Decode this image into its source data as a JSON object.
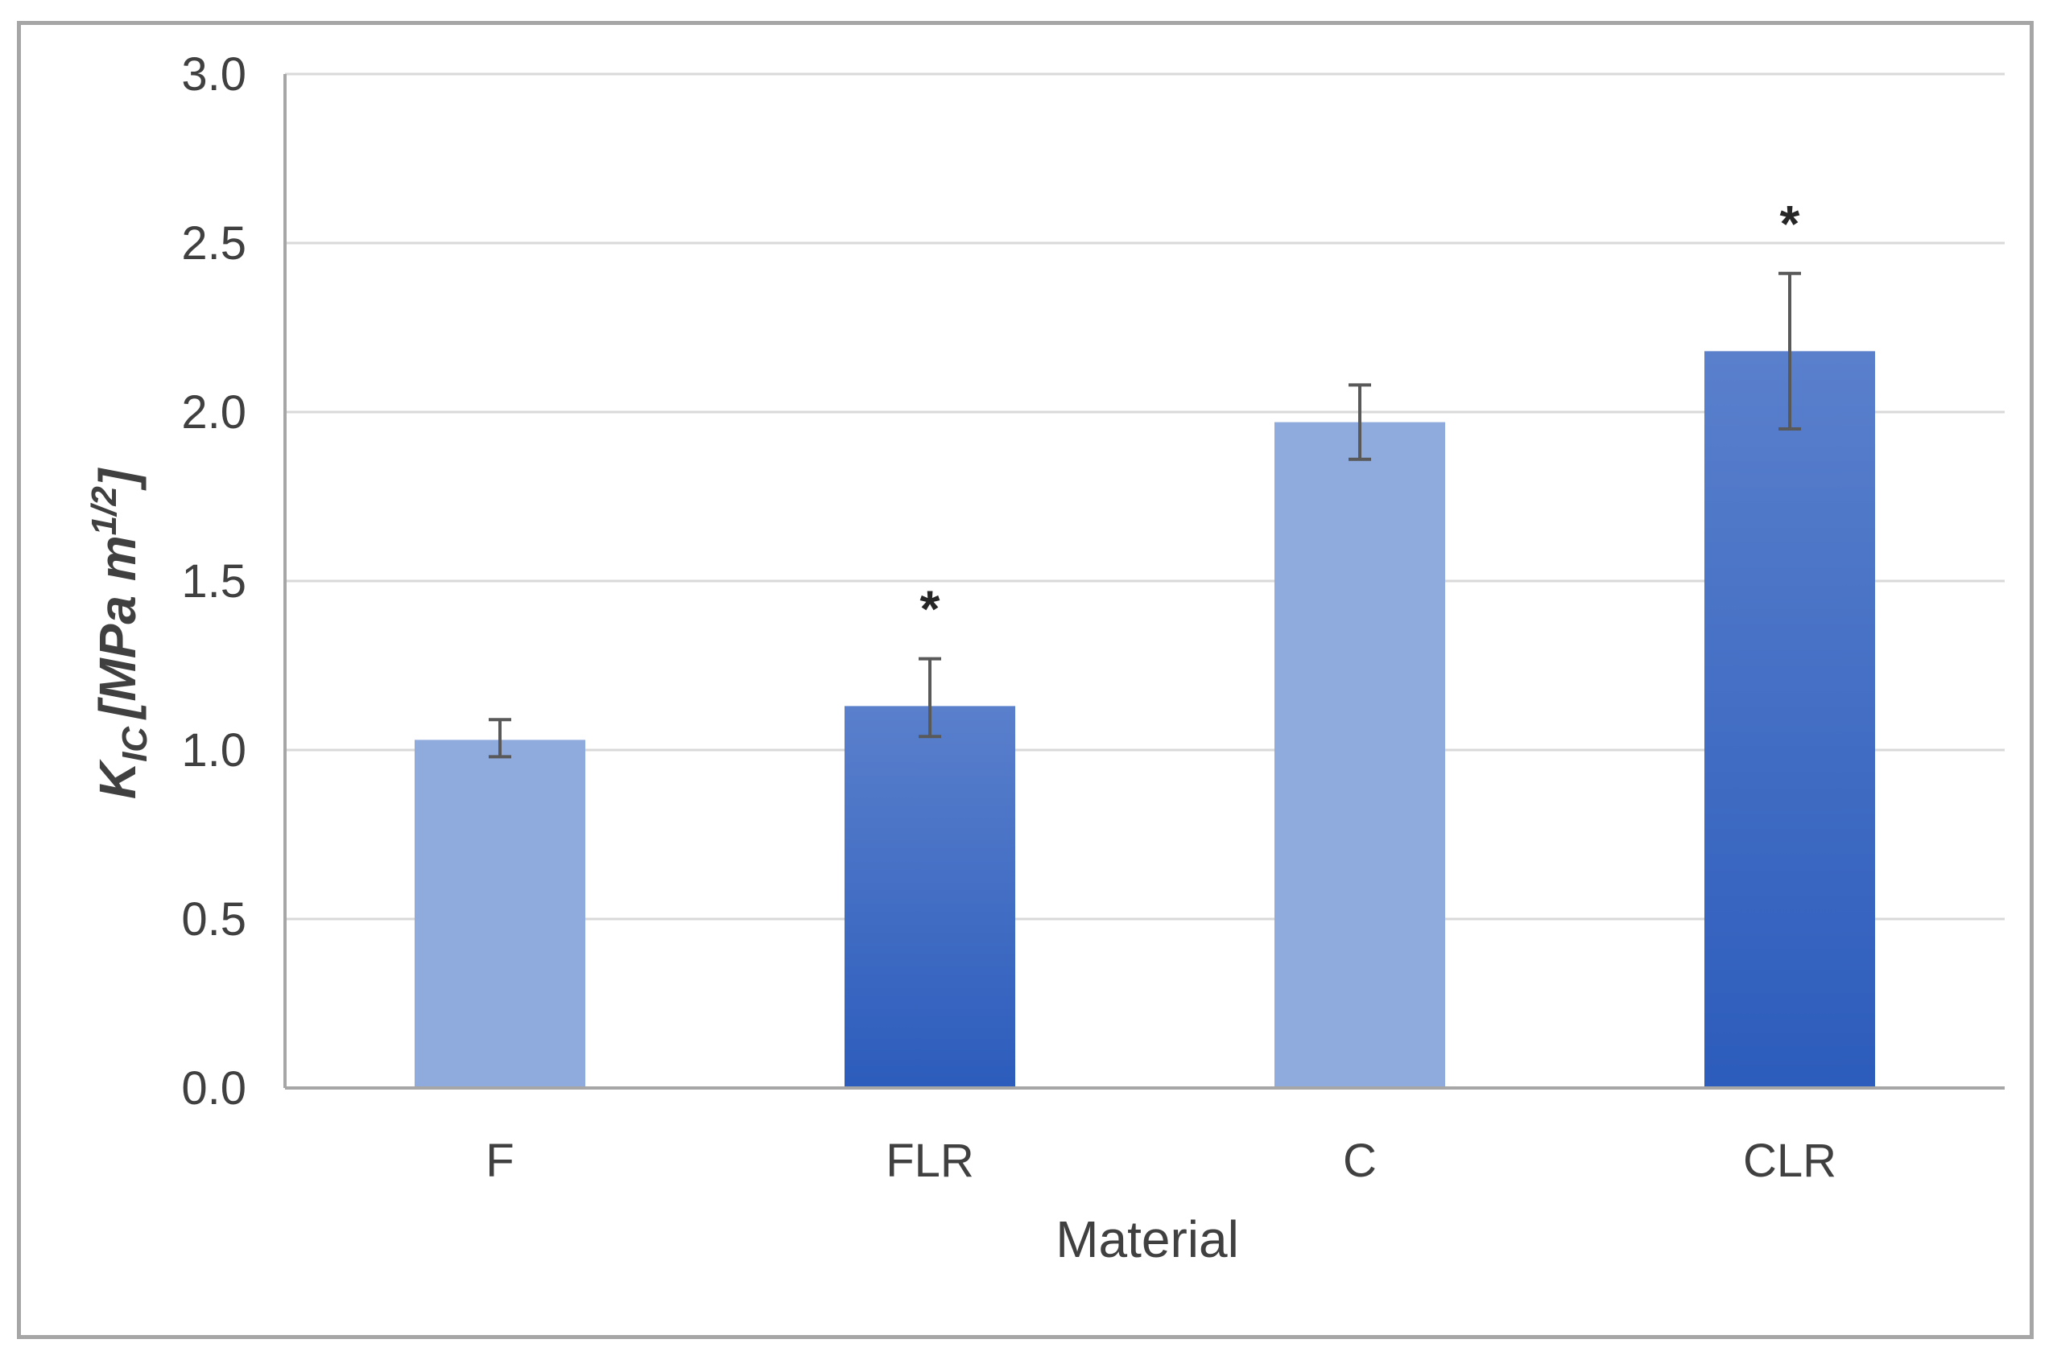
{
  "chart_data": {
    "type": "bar",
    "categories": [
      "F",
      "FLR",
      "C",
      "CLR"
    ],
    "values": [
      1.03,
      1.13,
      1.97,
      2.18
    ],
    "error_plus": [
      0.06,
      0.14,
      0.11,
      0.23
    ],
    "error_minus": [
      0.05,
      0.09,
      0.11,
      0.23
    ],
    "annotations": [
      "",
      "*",
      "",
      "*"
    ],
    "bar_styles": [
      "light",
      "gradient",
      "light",
      "gradient"
    ],
    "ylim": [
      0,
      3.0
    ],
    "ytick_step": 0.5,
    "yticks": [
      "0.0",
      "0.5",
      "1.0",
      "1.5",
      "2.0",
      "2.5",
      "3.0"
    ],
    "xlabel": "Material",
    "ylabel": {
      "symbol": "K",
      "subscript": "IC",
      "unit_prefix": "[MPa m",
      "unit_exponent": "1/2",
      "unit_suffix": "]"
    },
    "grid": true,
    "colors": {
      "light": "#8faadc",
      "gradient_top": "#5a80cc",
      "gradient_bottom": "#2c5cbc",
      "grid": "#d9d9d9",
      "axis": "#a6a6a6",
      "error_bar": "#595959"
    }
  }
}
